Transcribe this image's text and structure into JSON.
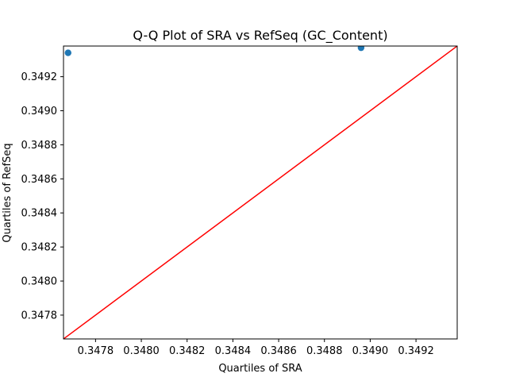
{
  "chart_data": {
    "type": "scatter",
    "title": "Q-Q Plot of SRA vs RefSeq (GC_Content)",
    "xlabel": "Quartiles of SRA",
    "ylabel": "Quartiles of RefSeq",
    "xlim": [
      0.34766,
      0.34938
    ],
    "ylim": [
      0.34766,
      0.34938
    ],
    "xticks": [
      0.3478,
      0.348,
      0.3482,
      0.3484,
      0.3486,
      0.3488,
      0.349,
      0.3492
    ],
    "yticks": [
      0.3478,
      0.348,
      0.3482,
      0.3484,
      0.3486,
      0.3488,
      0.349,
      0.3492
    ],
    "xtick_labels": [
      "0.3478",
      "0.3480",
      "0.3482",
      "0.3484",
      "0.3486",
      "0.3488",
      "0.3490",
      "0.3492"
    ],
    "ytick_labels": [
      "0.3478",
      "0.3480",
      "0.3482",
      "0.3484",
      "0.3486",
      "0.3488",
      "0.3490",
      "0.3492"
    ],
    "series": [
      {
        "type": "scatter",
        "x": [
          0.34768,
          0.34896
        ],
        "y": [
          0.34934,
          0.34937
        ]
      }
    ],
    "reference_line": {
      "type": "line",
      "x": [
        0.34766,
        0.34938
      ],
      "y": [
        0.34766,
        0.34938
      ]
    },
    "grid": false,
    "colors": {
      "points": "#1f77b4",
      "reference_line": "#ff0000",
      "axes": "#000000",
      "background": "#ffffff"
    }
  }
}
